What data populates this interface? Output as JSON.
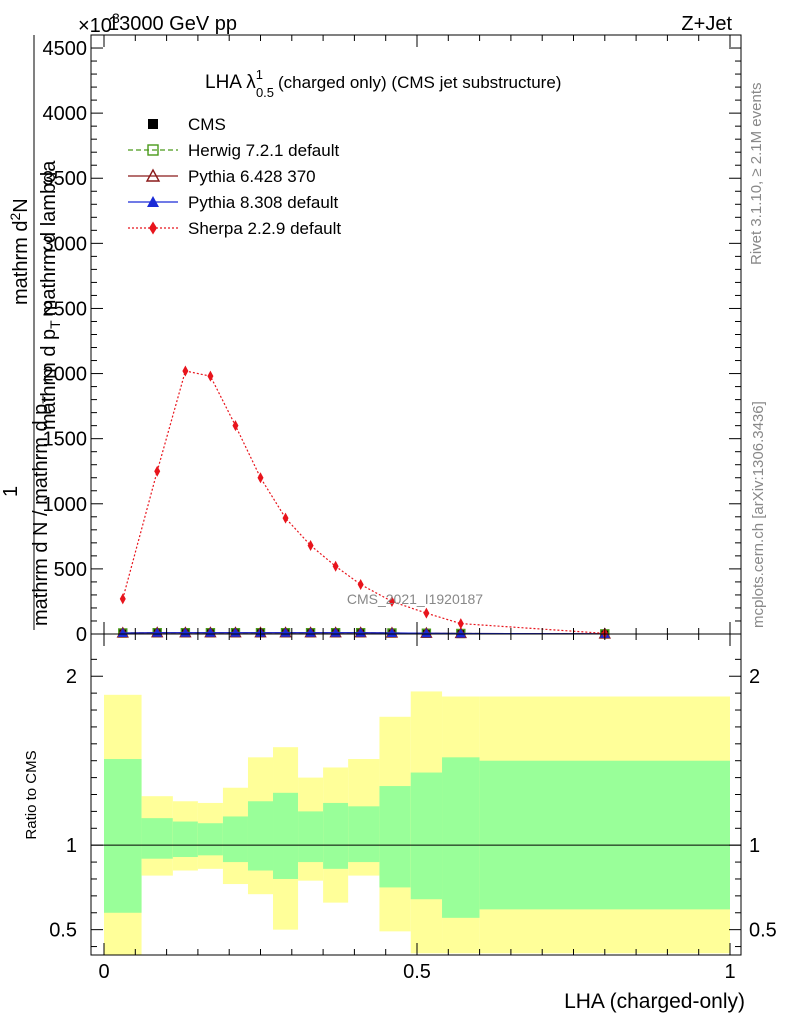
{
  "header": {
    "left": "13000 GeV pp",
    "right": "Z+Jet",
    "multiplier": "×10",
    "multiplier_exp": "3"
  },
  "side_text": {
    "rivet": "Rivet 3.1.10, ≥ 2.1M events",
    "mcplots": "mcplots.cern.ch [arXiv:1306.3436]"
  },
  "watermark": "CMS_2021_I1920187",
  "main_title": {
    "prefix": "LHA λ",
    "sup": "1",
    "sub": "0.5",
    "suffix": "(charged only) (CMS jet substructure)"
  },
  "ylabel_main": {
    "top_numerator": "mathrm d",
    "top_numerator_sup": "2",
    "top_text": "N",
    "top_denominator": "mathrm d p",
    "top_denominator_sub": "T",
    "top_denominator_2": "mathrm d lambda",
    "line1": "1",
    "line2": "mathrm d N / mathrm d p",
    "line2_sub": "T",
    "overlay": "mathrm d N  /  mathrm d p_T  mathrm d lambda"
  },
  "ylabel_ratio": "Ratio to CMS",
  "xlabel": "LHA (charged-only)",
  "legend": [
    {
      "name": "CMS",
      "color": "#000000",
      "marker": "square-filled",
      "line": "none"
    },
    {
      "name": "Herwig 7.2.1 default",
      "color": "#4a9a1a",
      "marker": "square-open",
      "line": "dashed"
    },
    {
      "name": "Pythia 6.428 370",
      "color": "#8b1a1a",
      "marker": "triangle-open",
      "line": "solid"
    },
    {
      "name": "Pythia 8.308 default",
      "color": "#1a2ad6",
      "marker": "triangle-filled",
      "line": "solid"
    },
    {
      "name": "Sherpa 2.2.9 default",
      "color": "#e8141c",
      "marker": "diamond-filled",
      "line": "dotted"
    }
  ],
  "chart_data": [
    {
      "type": "line",
      "panel": "main",
      "xlim": [
        0,
        1
      ],
      "ylim": [
        0,
        4600
      ],
      "y_scale_note": "×10^3",
      "x_ticks": [
        0,
        0.5,
        1
      ],
      "y_ticks": [
        0,
        500,
        1000,
        1500,
        2000,
        2500,
        3000,
        3500,
        4000,
        4500
      ],
      "y_tick_labels": [
        "0",
        "500",
        "1000",
        "1500",
        "2000",
        "2500",
        "3000",
        "3500",
        "4000",
        "4500"
      ],
      "x": [
        0.03,
        0.085,
        0.13,
        0.17,
        0.21,
        0.25,
        0.29,
        0.33,
        0.37,
        0.41,
        0.46,
        0.515,
        0.57,
        0.8
      ],
      "series": [
        {
          "name": "CMS",
          "values": [
            8,
            10,
            10,
            10,
            10,
            10,
            10,
            10,
            10,
            10,
            8,
            6,
            4,
            1
          ]
        },
        {
          "name": "Herwig 7.2.1 default",
          "values": [
            8,
            10,
            10,
            10,
            10,
            10,
            10,
            10,
            10,
            10,
            8,
            6,
            4,
            1
          ]
        },
        {
          "name": "Pythia 6.428 370",
          "values": [
            8,
            10,
            10,
            10,
            10,
            10,
            10,
            10,
            10,
            10,
            8,
            6,
            4,
            1
          ]
        },
        {
          "name": "Pythia 8.308 default",
          "values": [
            8,
            10,
            10,
            10,
            10,
            10,
            10,
            10,
            10,
            10,
            8,
            6,
            4,
            1
          ]
        },
        {
          "name": "Sherpa 2.2.9 default",
          "values": [
            270,
            1250,
            2020,
            1980,
            1600,
            1200,
            890,
            680,
            520,
            380,
            250,
            160,
            80,
            5
          ]
        }
      ]
    },
    {
      "type": "area",
      "panel": "ratio",
      "xlim": [
        0,
        1
      ],
      "ylim": [
        0.35,
        2.25
      ],
      "y_ticks": [
        0.5,
        1,
        2
      ],
      "y_tick_labels": [
        "0.5",
        "1",
        "2"
      ],
      "x_tick_labels": [
        "0",
        "0.5",
        "1"
      ],
      "bin_edges": [
        0,
        0.06,
        0.11,
        0.15,
        0.19,
        0.23,
        0.27,
        0.31,
        0.35,
        0.39,
        0.44,
        0.49,
        0.54,
        0.6,
        1.0
      ],
      "band_outer_upper": [
        1.89,
        1.29,
        1.26,
        1.25,
        1.34,
        1.52,
        1.58,
        1.4,
        1.46,
        1.51,
        1.76,
        1.91,
        1.88,
        1.88
      ],
      "band_outer_lower": [
        0.35,
        0.82,
        0.85,
        0.86,
        0.77,
        0.71,
        0.5,
        0.79,
        0.66,
        0.82,
        0.49,
        0.36,
        0.36,
        0.36
      ],
      "band_inner_upper": [
        1.51,
        1.16,
        1.14,
        1.13,
        1.17,
        1.26,
        1.31,
        1.2,
        1.25,
        1.23,
        1.35,
        1.43,
        1.52,
        1.5
      ],
      "band_inner_lower": [
        0.6,
        0.92,
        0.93,
        0.94,
        0.9,
        0.85,
        0.8,
        0.9,
        0.86,
        0.9,
        0.75,
        0.68,
        0.57,
        0.62
      ],
      "reference_line": 1
    }
  ],
  "colors": {
    "band_inner": "#99ff99",
    "band_outer": "#ffff99"
  }
}
